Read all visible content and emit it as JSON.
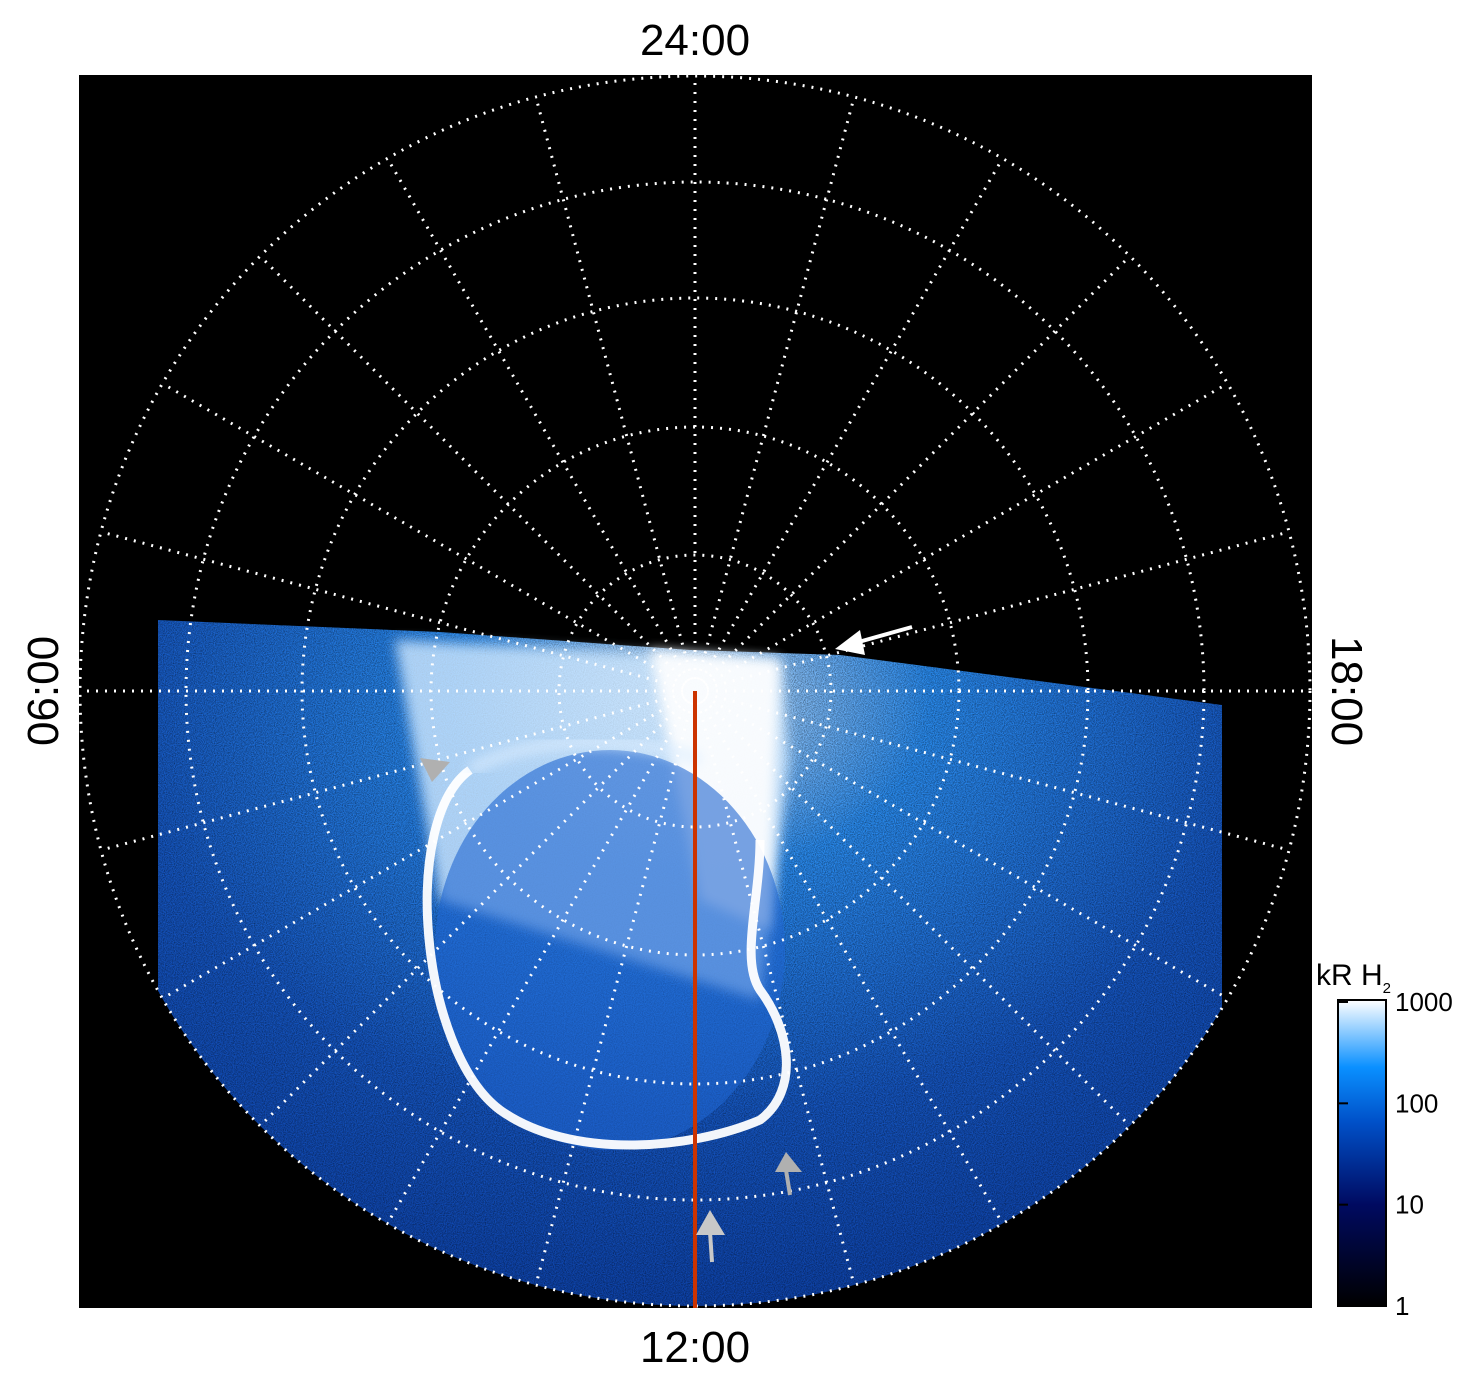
{
  "chart_data": {
    "type": "heatmap",
    "projection": "polar",
    "local_time_labels": {
      "top": "24:00",
      "bottom": "12:00",
      "left": "06:00",
      "right": "18:00"
    },
    "grid": true,
    "grid_style": "dotted",
    "colorbar": {
      "label": "kR H",
      "label_subscript": "2",
      "scale": "log",
      "range": [
        1,
        1000
      ],
      "ticks": [
        "1",
        "10",
        "100",
        "1000"
      ],
      "colormap": [
        "#000000",
        "#000a60",
        "#0050c8",
        "#0a90ff",
        "#ffffff"
      ],
      "placement": "bottom-right"
    },
    "annotations": {
      "meridian_line_color": "#cc3300",
      "arrow_white_color": "#ffffff",
      "arrow_grey_color": "#b0b0b0"
    }
  }
}
